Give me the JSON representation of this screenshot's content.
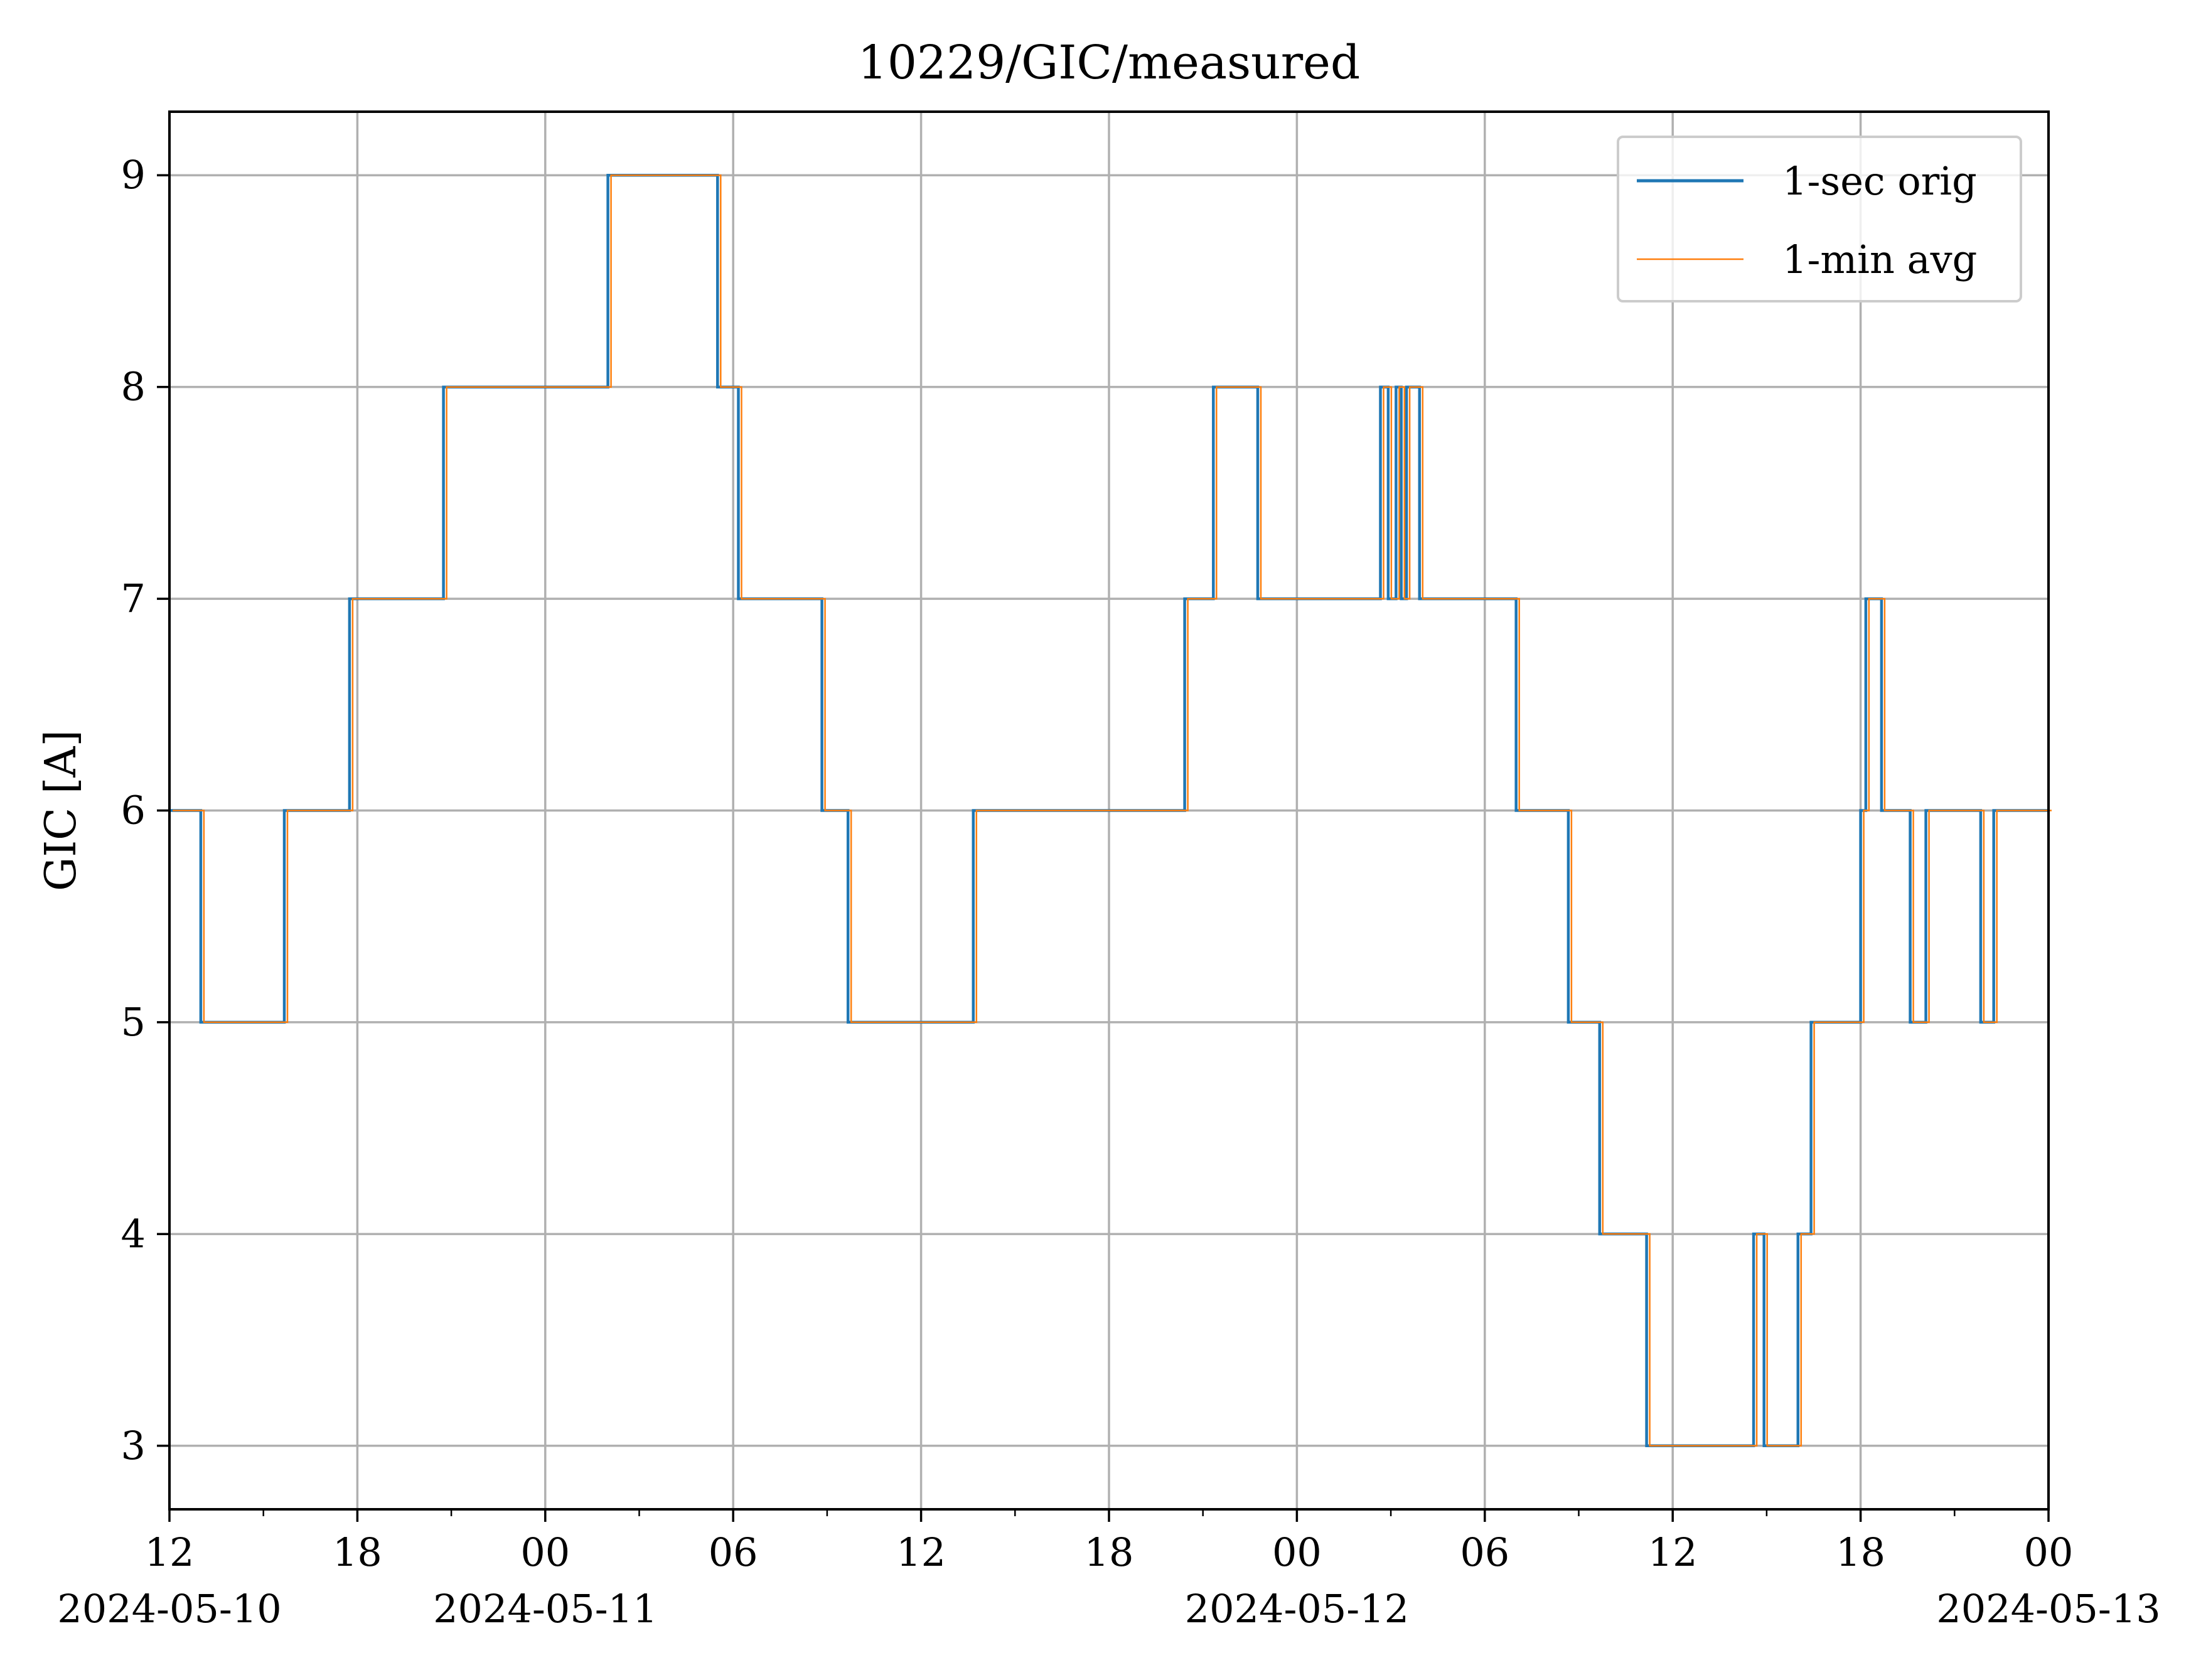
{
  "chart_data": {
    "type": "line",
    "title": "10229/GIC/measured",
    "xlabel": "",
    "ylabel": "GIC [A]",
    "x_ticks": [
      {
        "label": "12",
        "date": "2024-05-10"
      },
      {
        "label": "18",
        "date": ""
      },
      {
        "label": "00",
        "date": "2024-05-11"
      },
      {
        "label": "06",
        "date": ""
      },
      {
        "label": "12",
        "date": ""
      },
      {
        "label": "18",
        "date": ""
      },
      {
        "label": "00",
        "date": "2024-05-12"
      },
      {
        "label": "06",
        "date": ""
      },
      {
        "label": "12",
        "date": ""
      },
      {
        "label": "18",
        "date": ""
      },
      {
        "label": "00",
        "date": "2024-05-13"
      }
    ],
    "y_ticks": [
      "3",
      "4",
      "5",
      "6",
      "7",
      "8",
      "9"
    ],
    "xlim": [
      "2024-05-10 12:00",
      "2024-05-13 00:00"
    ],
    "ylim": [
      2.7,
      9.3
    ],
    "grid": true,
    "legend_position": "top-right",
    "series": [
      {
        "name": "1-sec orig",
        "color": "#1f77b4",
        "step": "post",
        "x": [
          "2024-05-10 12:00",
          "2024-05-10 13:00",
          "2024-05-10 15:40",
          "2024-05-10 15:50",
          "2024-05-10 17:45",
          "2024-05-10 20:45",
          "2024-05-11 02:00",
          "2024-05-11 05:30",
          "2024-05-11 06:10",
          "2024-05-11 08:50",
          "2024-05-11 09:40",
          "2024-05-11 13:40",
          "2024-05-11 20:25",
          "2024-05-11 21:20",
          "2024-05-11 22:45",
          "2024-05-12 02:40",
          "2024-05-12 02:55",
          "2024-05-12 03:10",
          "2024-05-12 03:20",
          "2024-05-12 03:30",
          "2024-05-12 03:55",
          "2024-05-12 07:00",
          "2024-05-12 08:40",
          "2024-05-12 09:40",
          "2024-05-12 11:10",
          "2024-05-12 14:35",
          "2024-05-12 14:55",
          "2024-05-12 16:00",
          "2024-05-12 16:25",
          "2024-05-12 18:00",
          "2024-05-12 18:10",
          "2024-05-12 18:40",
          "2024-05-12 19:35",
          "2024-05-12 20:05",
          "2024-05-12 21:50",
          "2024-05-12 22:15",
          "2024-05-12 22:35",
          "2024-05-13 00:00"
        ],
        "values": [
          6,
          5,
          6,
          6,
          7,
          8,
          9,
          8,
          7,
          6,
          5,
          6,
          7,
          8,
          7,
          8,
          7,
          8,
          7,
          8,
          7,
          6,
          5,
          4,
          3,
          4,
          3,
          4,
          5,
          6,
          7,
          6,
          5,
          6,
          5,
          6,
          6,
          6
        ]
      },
      {
        "name": "1-min avg",
        "color": "#ff7f0e",
        "step": "post",
        "x": [
          "2024-05-10 12:00",
          "2024-05-10 13:00",
          "2024-05-10 15:40",
          "2024-05-10 15:50",
          "2024-05-10 17:45",
          "2024-05-10 20:45",
          "2024-05-11 02:00",
          "2024-05-11 05:30",
          "2024-05-11 06:10",
          "2024-05-11 08:50",
          "2024-05-11 09:40",
          "2024-05-11 13:40",
          "2024-05-11 20:25",
          "2024-05-11 21:20",
          "2024-05-11 22:45",
          "2024-05-12 02:40",
          "2024-05-12 02:55",
          "2024-05-12 03:10",
          "2024-05-12 03:20",
          "2024-05-12 03:30",
          "2024-05-12 03:55",
          "2024-05-12 07:00",
          "2024-05-12 08:40",
          "2024-05-12 09:40",
          "2024-05-12 11:10",
          "2024-05-12 14:35",
          "2024-05-12 14:55",
          "2024-05-12 16:00",
          "2024-05-12 16:25",
          "2024-05-12 18:00",
          "2024-05-12 18:10",
          "2024-05-12 18:40",
          "2024-05-12 19:35",
          "2024-05-12 20:05",
          "2024-05-12 21:50",
          "2024-05-12 22:15",
          "2024-05-12 22:35",
          "2024-05-13 00:00"
        ],
        "values": [
          6,
          5,
          6,
          6,
          7,
          8,
          9,
          8,
          7,
          6,
          5,
          6,
          7,
          8,
          7,
          8,
          7,
          8,
          7,
          8,
          7,
          6,
          5,
          4,
          3,
          4,
          3,
          4,
          5,
          6,
          7,
          6,
          5,
          6,
          5,
          6,
          6,
          6
        ]
      }
    ]
  }
}
